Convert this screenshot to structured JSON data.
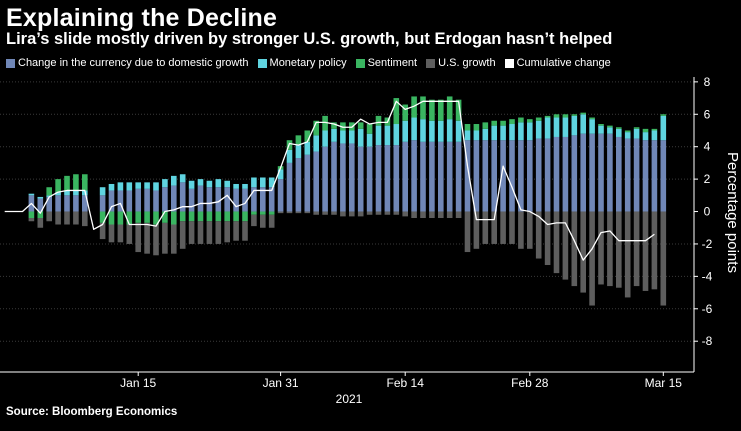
{
  "chart_data": {
    "type": "bar",
    "title": "Explaining the Decline",
    "subtitle": "Lira’s slide mostly driven by stronger U.S. growth, but Erdogan hasn’t helped",
    "ylabel": "Percentage points",
    "xlabel": "2021",
    "source": "Source: Bloomberg Economics",
    "ylim": [
      -9.9,
      8.3
    ],
    "yticks": [
      8,
      6,
      4,
      2,
      0,
      -2,
      -4,
      -6,
      -8
    ],
    "ytick_labels": [
      "8",
      "6",
      "4",
      "2",
      "0",
      "-2",
      "-4",
      "-6",
      "-8"
    ],
    "xtick_labels": [
      "Jan 15",
      "Jan 31",
      "Feb 14",
      "Feb 28",
      "Mar 15"
    ],
    "xtick_index": [
      15,
      31,
      45,
      59,
      74
    ],
    "legend": [
      {
        "name": "Change in the currency due to domestic growth",
        "color": "#7087b7"
      },
      {
        "name": "Monetary policy",
        "color": "#5fd4e0"
      },
      {
        "name": "Sentiment",
        "color": "#3ab561"
      },
      {
        "name": "U.S. growth",
        "color": "#5e5e5e"
      },
      {
        "name": "Cumulative change",
        "color": "#ffffff"
      }
    ],
    "series": [
      {
        "name": "Change in the currency due to domestic growth",
        "color": "#7087b7",
        "values": [
          null,
          null,
          null,
          1.0,
          0.8,
          0.9,
          1.0,
          1.0,
          1.0,
          1.0,
          null,
          1.0,
          1.3,
          1.3,
          1.3,
          1.4,
          1.4,
          1.3,
          1.5,
          1.6,
          1.8,
          1.4,
          1.6,
          1.5,
          1.5,
          1.5,
          1.4,
          1.4,
          1.5,
          1.5,
          1.5,
          2.0,
          3.0,
          3.3,
          3.5,
          3.7,
          4.0,
          4.3,
          4.2,
          4.2,
          4.0,
          4.0,
          4.1,
          4.1,
          4.1,
          4.3,
          4.4,
          4.3,
          4.3,
          4.3,
          4.3,
          4.3,
          4.4,
          4.4,
          4.4,
          4.4,
          4.4,
          4.4,
          4.4,
          4.4,
          4.5,
          4.5,
          4.6,
          4.6,
          4.7,
          4.8,
          4.8,
          4.8,
          4.8,
          4.6,
          4.5,
          4.5,
          4.4,
          4.4,
          4.4
        ]
      },
      {
        "name": "Monetary policy",
        "color": "#5fd4e0",
        "values": [
          null,
          null,
          null,
          0.1,
          0.1,
          0.1,
          0.2,
          0.3,
          0.3,
          0.3,
          null,
          0.5,
          0.4,
          0.5,
          0.5,
          0.4,
          0.4,
          0.5,
          0.5,
          0.6,
          0.5,
          0.5,
          0.4,
          0.4,
          0.5,
          0.4,
          0.3,
          0.3,
          0.6,
          0.6,
          0.6,
          0.6,
          0.8,
          0.8,
          0.8,
          1.0,
          1.0,
          0.8,
          0.8,
          0.8,
          1.1,
          0.8,
          1.2,
          1.2,
          1.3,
          1.3,
          1.4,
          1.4,
          1.3,
          1.3,
          1.4,
          1.3,
          0.6,
          0.6,
          0.7,
          0.9,
          0.9,
          1.0,
          1.1,
          1.1,
          1.1,
          1.3,
          1.2,
          1.2,
          1.2,
          1.2,
          0.9,
          0.5,
          0.4,
          0.5,
          0.4,
          0.6,
          0.5,
          0.6,
          1.5
        ]
      },
      {
        "name": "Sentiment",
        "color": "#3ab561",
        "values": [
          null,
          null,
          null,
          -0.4,
          -0.4,
          0.5,
          0.8,
          0.9,
          1.0,
          1.0,
          null,
          -0.7,
          -0.8,
          -0.8,
          -0.8,
          -0.7,
          -0.7,
          -0.8,
          -0.7,
          -0.8,
          -0.6,
          -0.6,
          -0.6,
          -0.6,
          -0.6,
          -0.6,
          -0.6,
          -0.6,
          -0.2,
          -0.2,
          -0.2,
          0.2,
          0.6,
          0.6,
          0.7,
          0.9,
          0.9,
          0.4,
          0.5,
          0.5,
          0.4,
          0.6,
          0.6,
          0.5,
          1.6,
          1.0,
          1.3,
          1.4,
          1.3,
          1.3,
          1.4,
          1.3,
          0.4,
          0.4,
          0.4,
          0.3,
          0.3,
          0.3,
          0.3,
          0.2,
          0.2,
          0.1,
          0.2,
          0.2,
          0.1,
          0.1,
          0.1,
          0.1,
          0.1,
          0.1,
          0.1,
          0.1,
          0.2,
          0.1,
          0.1
        ]
      },
      {
        "name": "U.S. growth",
        "color": "#5e5e5e",
        "values": [
          null,
          null,
          null,
          -0.2,
          -0.6,
          -0.6,
          -0.8,
          -0.8,
          -0.8,
          -0.9,
          null,
          -1.0,
          -1.1,
          -1.1,
          -1.2,
          -1.8,
          -1.9,
          -1.9,
          -1.9,
          -1.8,
          -1.7,
          -1.4,
          -1.4,
          -1.4,
          -1.4,
          -1.3,
          -1.2,
          -1.2,
          -0.7,
          -0.8,
          -0.8,
          -0.1,
          -0.1,
          -0.1,
          -0.1,
          -0.2,
          -0.2,
          -0.2,
          -0.3,
          -0.3,
          -0.3,
          -0.2,
          -0.2,
          -0.2,
          -0.2,
          -0.3,
          -0.4,
          -0.4,
          -0.4,
          -0.4,
          -0.4,
          -0.4,
          -2.5,
          -2.3,
          -2.0,
          -2.0,
          -2.0,
          -2.0,
          -2.3,
          -2.3,
          -2.9,
          -3.3,
          -3.8,
          -4.2,
          -4.6,
          -5.0,
          -5.8,
          -4.5,
          -4.6,
          -4.7,
          -5.3,
          -4.6,
          -4.9,
          -4.8,
          -5.8
        ]
      },
      {
        "name": "Cumulative change",
        "color": "#ffffff",
        "values": [
          0.0,
          0.0,
          0.0,
          0.5,
          -0.1,
          0.9,
          1.2,
          1.3,
          1.3,
          1.3,
          -1.1,
          -0.8,
          0.3,
          0.5,
          -0.8,
          -0.8,
          -0.8,
          -0.9,
          0.0,
          0.1,
          0.3,
          0.3,
          0.5,
          0.5,
          0.6,
          1.0,
          0.3,
          0.5,
          1.3,
          1.3,
          1.3,
          2.7,
          4.2,
          4.1,
          4.3,
          5.5,
          5.5,
          5.4,
          5.2,
          5.2,
          5.7,
          5.4,
          5.5,
          5.5,
          6.8,
          6.3,
          6.5,
          6.8,
          6.8,
          6.8,
          6.8,
          6.8,
          2.8,
          -0.5,
          -0.5,
          -0.5,
          2.8,
          1.5,
          0.1,
          0.0,
          -0.3,
          -0.8,
          -0.7,
          -0.7,
          -1.8,
          -3.0,
          -2.3,
          -1.3,
          -1.2,
          -1.8,
          -1.8,
          -1.8,
          -1.8,
          -1.4,
          null
        ]
      }
    ]
  }
}
